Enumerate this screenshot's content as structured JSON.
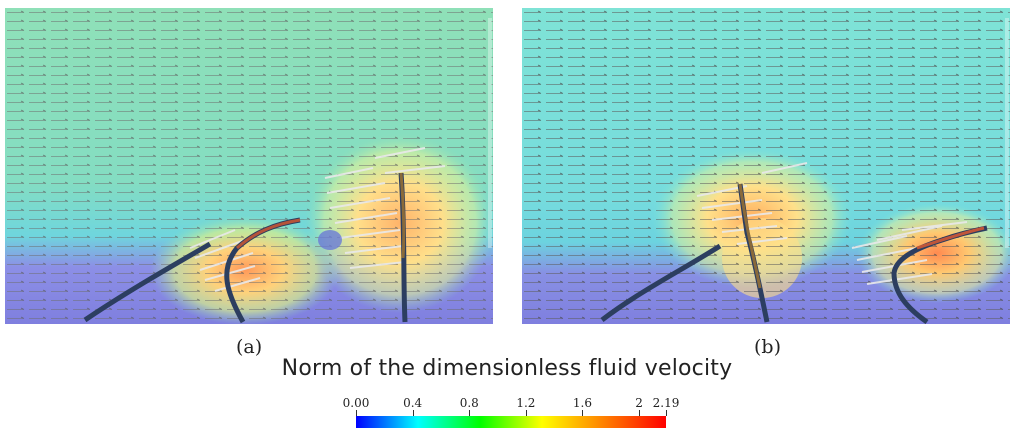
{
  "figure": {
    "panels": [
      {
        "id": "a",
        "caption": "(a)"
      },
      {
        "id": "b",
        "caption": "(b)"
      }
    ],
    "colorbar": {
      "title": "Norm of the dimensionless fluid velocity",
      "min": 0.0,
      "max": 2.19,
      "ticks": [
        {
          "value": 0.0,
          "label": "0.00"
        },
        {
          "value": 0.4,
          "label": "0.4"
        },
        {
          "value": 0.8,
          "label": "0.8"
        },
        {
          "value": 1.2,
          "label": "1.2"
        },
        {
          "value": 1.6,
          "label": "1.6"
        },
        {
          "value": 2.0,
          "label": "2"
        },
        {
          "value": 2.19,
          "label": "2.19"
        }
      ],
      "colors": [
        "#0000ff",
        "#00ffff",
        "#00ff00",
        "#ffff00",
        "#ff8000",
        "#ff0000"
      ]
    },
    "field_colors": {
      "low": "#7f7fdf",
      "midlow": "#79dcdc",
      "mid": "#8ce3ad",
      "high": "#ffe08a",
      "peak": "#ff9a5a",
      "blade": "#2c3e60"
    }
  }
}
